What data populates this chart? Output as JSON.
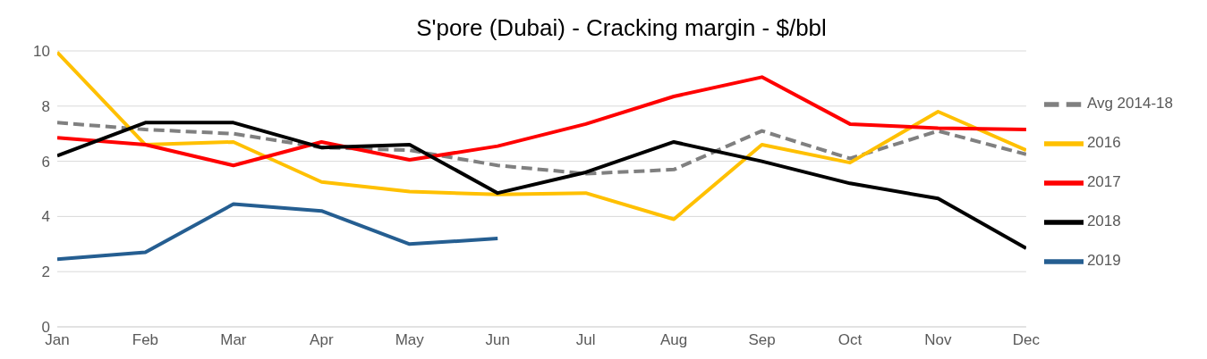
{
  "chart_data": {
    "type": "line",
    "title": "S'pore (Dubai) - Cracking margin - $/bbl",
    "categories": [
      "Jan",
      "Feb",
      "Mar",
      "Apr",
      "May",
      "Jun",
      "Jul",
      "Aug",
      "Sep",
      "Oct",
      "Nov",
      "Dec"
    ],
    "series": [
      {
        "name": "Avg 2014-18",
        "color": "#808080",
        "line_style": "dashed",
        "values": [
          7.4,
          7.15,
          7.0,
          6.5,
          6.4,
          5.85,
          5.55,
          5.7,
          7.1,
          6.1,
          7.1,
          6.25
        ]
      },
      {
        "name": "2016",
        "color": "#ffc000",
        "values": [
          9.95,
          6.6,
          6.7,
          5.25,
          4.9,
          4.8,
          4.85,
          3.9,
          6.6,
          5.95,
          7.8,
          6.4
        ]
      },
      {
        "name": "2017",
        "color": "#ff0000",
        "values": [
          6.85,
          6.6,
          5.85,
          6.7,
          6.05,
          6.55,
          7.35,
          8.35,
          9.05,
          7.35,
          7.2,
          7.15
        ]
      },
      {
        "name": "2018",
        "color": "#000000",
        "values": [
          6.2,
          7.4,
          7.4,
          6.5,
          6.6,
          4.85,
          5.6,
          6.7,
          6.0,
          5.2,
          4.65,
          2.85
        ]
      },
      {
        "name": "2019",
        "color": "#255e91",
        "values": [
          2.45,
          2.7,
          4.45,
          4.2,
          3.0,
          3.2,
          null,
          null,
          null,
          null,
          null,
          null
        ]
      }
    ],
    "ylim": [
      0,
      10
    ],
    "yticks": [
      0,
      2,
      4,
      6,
      8,
      10
    ],
    "grid": "y",
    "legend": "right",
    "marker": "none",
    "line_style": "solid"
  }
}
